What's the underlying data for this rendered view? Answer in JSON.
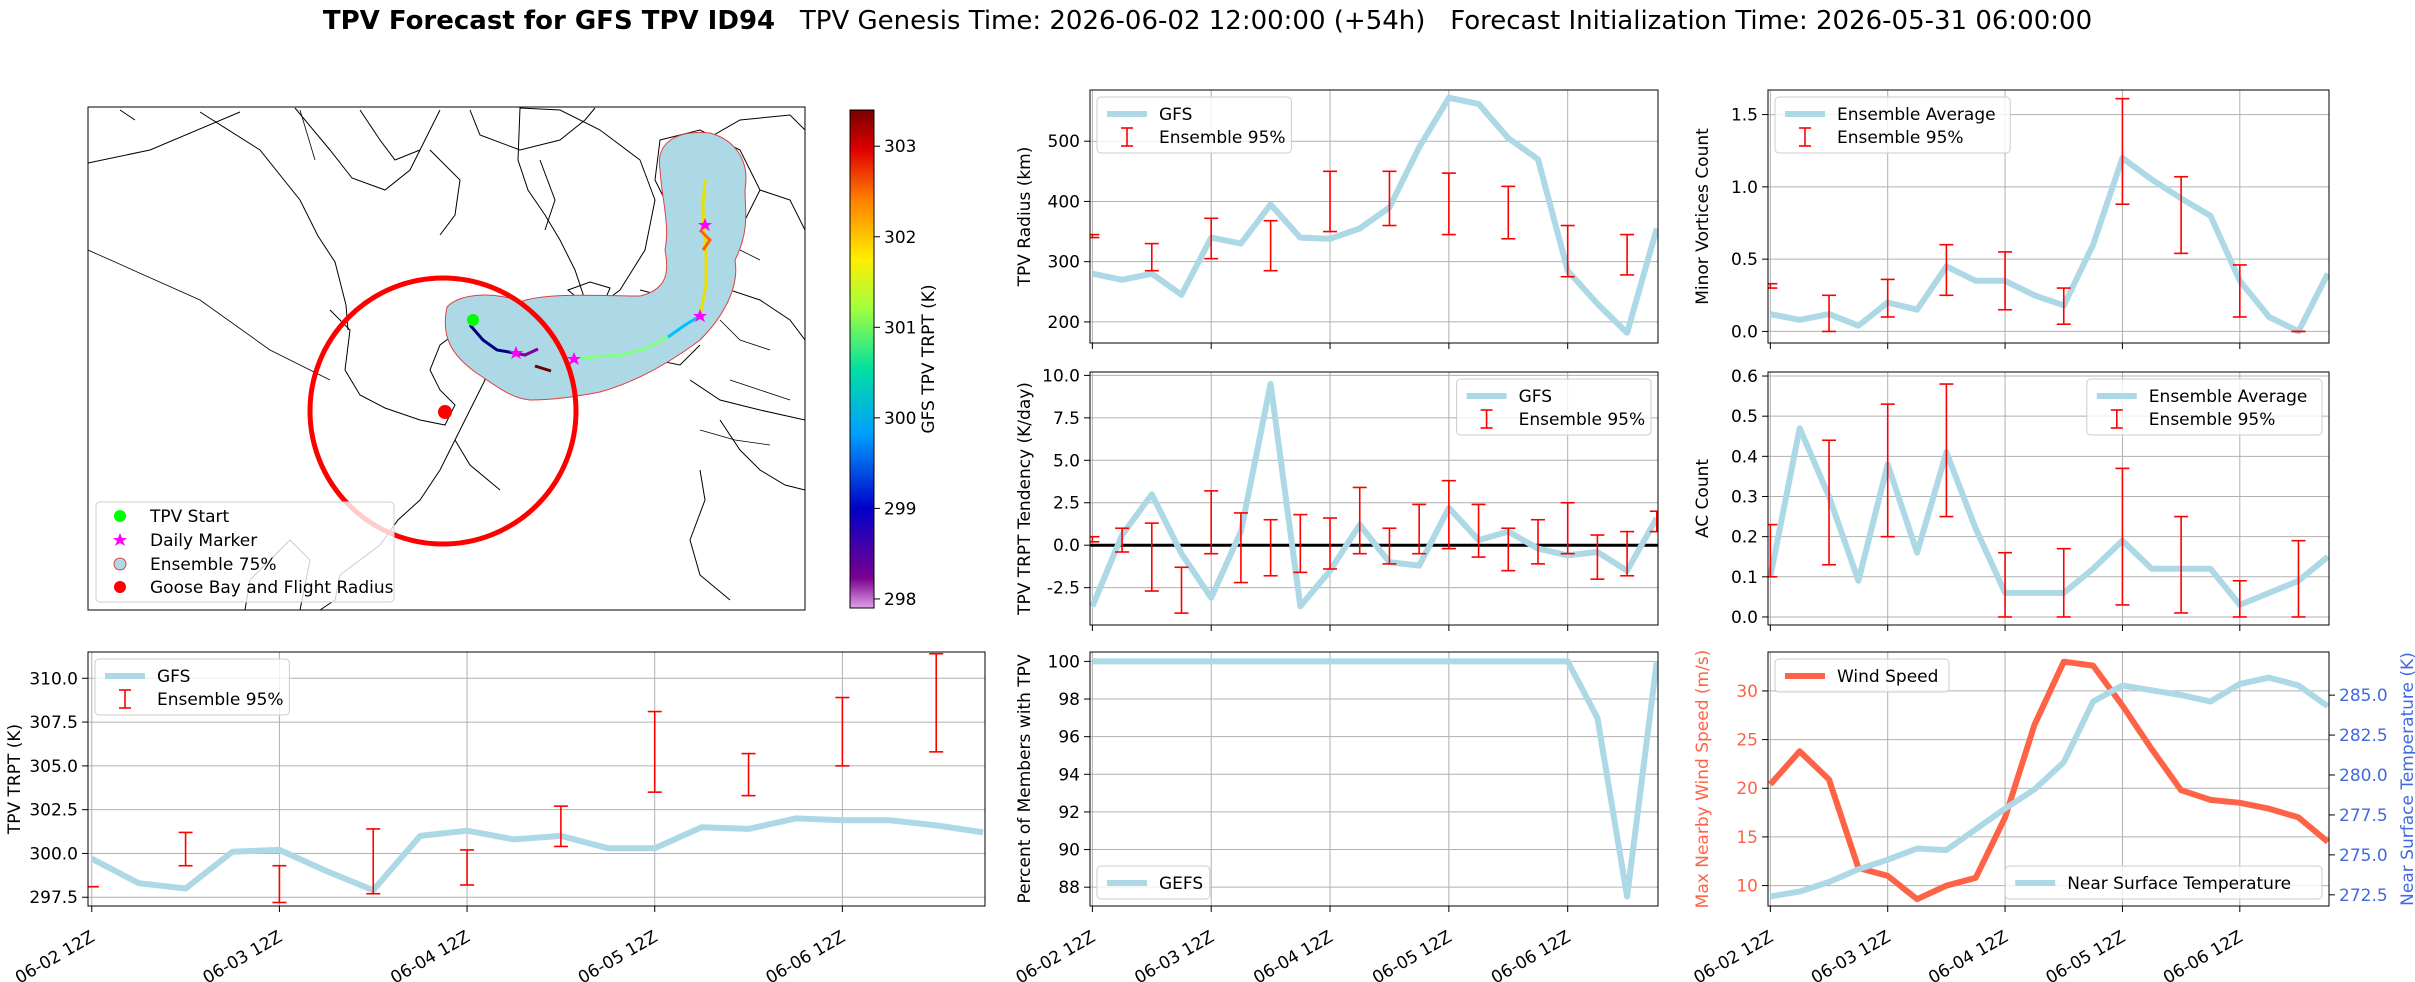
{
  "title": {
    "bold": "TPV Forecast for GFS TPV ID94",
    "genesis": "TPV Genesis Time: 2026-06-02 12:00:00 (+54h)",
    "init": "Forecast Initialization Time: 2026-05-31 06:00:00"
  },
  "colors": {
    "gfs_line": "#add8e6",
    "ensemble_err": "#ff0000",
    "wind": "#ff6347",
    "temp_axis": "#4169e1",
    "ens75_fill": "#add8e6",
    "goose_bay": "#ff0000",
    "tpv_start": "#00ff00",
    "daily_marker": "#ff00ff"
  },
  "map": {
    "legend": [
      "TPV Start",
      "Daily Marker",
      "Ensemble 75%",
      "Goose Bay and Flight Radius"
    ],
    "colorbar_label": "GFS TPV TRPT (K)",
    "colorbar_ticks": [
      298,
      299,
      300,
      301,
      302,
      303
    ],
    "colorbar_range": [
      297.9,
      303.4
    ]
  },
  "date_ticks": [
    "06-02 12Z",
    "06-03 12Z",
    "06-04 12Z",
    "06-05 12Z",
    "06-06 12Z"
  ],
  "chart_data": [
    {
      "id": "trpt",
      "type": "line",
      "ylabel": "TPV TRPT (K)",
      "ylim": [
        297,
        311.5
      ],
      "yticks": [
        297.5,
        300.0,
        302.5,
        305.0,
        307.5,
        310.0
      ],
      "x": [
        0,
        0.25,
        0.5,
        0.75,
        1,
        1.25,
        1.5,
        1.75,
        2,
        2.25,
        2.5,
        2.75,
        3,
        3.25,
        3.5,
        3.75,
        4,
        4.25,
        4.5,
        4.75
      ],
      "series": [
        {
          "name": "GFS",
          "values": [
            299.7,
            298.3,
            298.0,
            300.1,
            300.2,
            299.0,
            297.9,
            301.0,
            301.3,
            300.8,
            301.0,
            300.3,
            300.3,
            301.5,
            301.4,
            302.0,
            301.9,
            301.9,
            301.6,
            301.2
          ]
        }
      ],
      "errorbars": {
        "name": "Ensemble 95%",
        "x": [
          0,
          0.5,
          1,
          1.5,
          2,
          2.5,
          3,
          3.5,
          4,
          4.5
        ],
        "low": [
          298.1,
          299.3,
          297.2,
          297.7,
          298.2,
          300.4,
          303.5,
          303.3,
          305.0,
          305.8
        ],
        "high": [
          298.1,
          301.2,
          299.3,
          301.4,
          300.2,
          302.7,
          308.1,
          305.7,
          308.9,
          311.4
        ]
      },
      "legend": [
        "GFS",
        "Ensemble 95%"
      ]
    },
    {
      "id": "radius",
      "type": "line",
      "ylabel": "TPV Radius (km)",
      "ylim": [
        165,
        585
      ],
      "yticks": [
        200,
        300,
        400,
        500
      ],
      "x": [
        0,
        0.25,
        0.5,
        0.75,
        1,
        1.25,
        1.5,
        1.75,
        2,
        2.25,
        2.5,
        2.75,
        3,
        3.25,
        3.5,
        3.75,
        4,
        4.25,
        4.5,
        4.75
      ],
      "series": [
        {
          "name": "GFS",
          "values": [
            280,
            270,
            280,
            245,
            340,
            330,
            395,
            340,
            338,
            355,
            390,
            490,
            572,
            562,
            505,
            470,
            285,
            230,
            182,
            355
          ]
        }
      ],
      "errorbars": {
        "name": "Ensemble 95%",
        "x": [
          0,
          0.5,
          1,
          1.5,
          2,
          2.5,
          3,
          3.5,
          4,
          4.5
        ],
        "low": [
          340,
          285,
          305,
          285,
          350,
          360,
          345,
          338,
          275,
          278
        ],
        "high": [
          345,
          330,
          372,
          368,
          450,
          450,
          447,
          425,
          360,
          345
        ]
      },
      "legend": [
        "GFS",
        "Ensemble 95%"
      ]
    },
    {
      "id": "tend",
      "type": "line",
      "ylabel": "TPV TRPT Tendency (K/day)",
      "ylim": [
        -4.7,
        10.2
      ],
      "yticks": [
        -2.5,
        0.0,
        2.5,
        5.0,
        7.5,
        10.0
      ],
      "x": [
        0,
        0.25,
        0.5,
        0.75,
        1,
        1.25,
        1.5,
        1.75,
        2,
        2.25,
        2.5,
        2.75,
        3,
        3.25,
        3.5,
        3.75,
        4,
        4.25,
        4.5,
        4.75
      ],
      "series": [
        {
          "name": "GFS",
          "values": [
            -3.6,
            0.6,
            3.0,
            -0.5,
            -3.1,
            0.8,
            9.5,
            -3.6,
            -1.5,
            1.2,
            -1.0,
            -1.2,
            2.2,
            0.3,
            0.8,
            -0.2,
            -0.6,
            -0.4,
            -1.5,
            1.6
          ]
        }
      ],
      "errorbars": {
        "name": "Ensemble 95%",
        "x": [
          0,
          0.25,
          0.5,
          0.75,
          1,
          1.25,
          1.5,
          1.75,
          2,
          2.25,
          2.5,
          2.75,
          3,
          3.25,
          3.5,
          3.75,
          4,
          4.25,
          4.5,
          4.75
        ],
        "low": [
          0.2,
          -0.4,
          -2.7,
          -4.0,
          -0.5,
          -2.2,
          -1.8,
          -1.6,
          -1.4,
          -0.5,
          -1.1,
          -0.5,
          -0.2,
          -0.7,
          -1.5,
          -1.1,
          -0.5,
          -2.0,
          -1.8,
          0.8
        ],
        "high": [
          0.5,
          1.0,
          1.3,
          -1.3,
          3.2,
          1.9,
          1.5,
          1.8,
          1.6,
          3.4,
          1.0,
          2.4,
          3.8,
          2.4,
          1.0,
          1.5,
          2.5,
          0.6,
          0.8,
          2.0
        ]
      },
      "hline": 0,
      "legend": [
        "GFS",
        "Ensemble 95%"
      ]
    },
    {
      "id": "members",
      "type": "line",
      "ylabel": "Percent of Members with TPV",
      "ylim": [
        87,
        100.5
      ],
      "yticks": [
        88,
        90,
        92,
        94,
        96,
        98,
        100
      ],
      "x": [
        0,
        4,
        4.25,
        4.5,
        4.75
      ],
      "series": [
        {
          "name": "GEFS",
          "values": [
            100,
            100,
            97,
            87.5,
            100
          ]
        }
      ],
      "legend": [
        "GEFS"
      ]
    },
    {
      "id": "minor",
      "type": "line",
      "ylabel": "Minor Vortices Count",
      "ylim": [
        -0.08,
        1.67
      ],
      "yticks": [
        0.0,
        0.5,
        1.0,
        1.5
      ],
      "x": [
        0,
        0.25,
        0.5,
        0.75,
        1,
        1.25,
        1.5,
        1.75,
        2,
        2.25,
        2.5,
        2.75,
        3,
        3.25,
        3.5,
        3.75,
        4,
        4.25,
        4.5,
        4.75
      ],
      "series": [
        {
          "name": "Ensemble Average",
          "values": [
            0.12,
            0.08,
            0.12,
            0.04,
            0.2,
            0.15,
            0.45,
            0.35,
            0.35,
            0.25,
            0.18,
            0.6,
            1.2,
            1.05,
            0.92,
            0.8,
            0.35,
            0.1,
            0.0,
            0.4
          ]
        }
      ],
      "errorbars": {
        "name": "Ensemble 95%",
        "x": [
          0,
          0.5,
          1,
          1.5,
          2,
          2.5,
          3,
          3.5,
          4,
          4.5
        ],
        "low": [
          0.3,
          0.0,
          0.1,
          0.25,
          0.15,
          0.05,
          0.88,
          0.54,
          0.1,
          0.0
        ],
        "high": [
          0.33,
          0.25,
          0.36,
          0.6,
          0.55,
          0.3,
          1.61,
          1.07,
          0.46,
          0.0
        ]
      },
      "legend": [
        "Ensemble Average",
        "Ensemble 95%"
      ]
    },
    {
      "id": "ac",
      "type": "line",
      "ylabel": "AC Count",
      "ylim": [
        -0.02,
        0.61
      ],
      "yticks": [
        0.0,
        0.1,
        0.2,
        0.3,
        0.4,
        0.5,
        0.6
      ],
      "x": [
        0,
        0.25,
        0.5,
        0.75,
        1,
        1.25,
        1.5,
        1.75,
        2,
        2.25,
        2.5,
        2.75,
        3,
        3.25,
        3.5,
        3.75,
        4,
        4.25,
        4.5,
        4.75
      ],
      "series": [
        {
          "name": "Ensemble Average",
          "values": [
            0.1,
            0.47,
            0.3,
            0.09,
            0.38,
            0.16,
            0.41,
            0.22,
            0.06,
            0.06,
            0.06,
            0.12,
            0.19,
            0.12,
            0.12,
            0.12,
            0.03,
            0.06,
            0.09,
            0.15
          ]
        }
      ],
      "errorbars": {
        "name": "Ensemble 95%",
        "x": [
          0,
          0.5,
          1,
          1.5,
          2,
          2.5,
          3,
          3.5,
          4,
          4.5
        ],
        "low": [
          0.1,
          0.13,
          0.2,
          0.25,
          0.0,
          0.0,
          0.03,
          0.01,
          0.0,
          0.0
        ],
        "high": [
          0.23,
          0.44,
          0.53,
          0.58,
          0.16,
          0.17,
          0.37,
          0.25,
          0.09,
          0.19
        ]
      },
      "legend": [
        "Ensemble Average",
        "Ensemble 95%"
      ]
    },
    {
      "id": "wind",
      "type": "line",
      "ylabel": "Max Nearby Wind Speed (m/s)",
      "ylabel2": "Near Surface Temperature (K)",
      "ylim": [
        7.9,
        34
      ],
      "yticks": [
        10,
        15,
        20,
        25,
        30
      ],
      "ylim2": [
        271.8,
        287.7
      ],
      "yticks2": [
        272.5,
        275.0,
        277.5,
        280.0,
        282.5,
        285.0
      ],
      "x": [
        0,
        0.25,
        0.5,
        0.75,
        1,
        1.25,
        1.5,
        1.75,
        2,
        2.25,
        2.5,
        2.75,
        3,
        3.25,
        3.5,
        3.75,
        4,
        4.25,
        4.5,
        4.75
      ],
      "series": [
        {
          "name": "Wind Speed",
          "values": [
            20.4,
            23.8,
            20.9,
            11.8,
            11.0,
            8.6,
            10.0,
            10.8,
            17.0,
            26.5,
            33.0,
            32.6,
            28.5,
            24.0,
            19.8,
            18.8,
            18.5,
            17.9,
            17.0,
            14.5
          ]
        },
        {
          "name": "Near Surface Temperature",
          "values": [
            272.4,
            272.7,
            273.3,
            274.1,
            274.7,
            275.4,
            275.3,
            276.6,
            277.9,
            279.1,
            280.8,
            284.6,
            285.6,
            285.3,
            285.0,
            284.6,
            285.7,
            286.1,
            285.6,
            284.3
          ]
        }
      ],
      "legend": [
        "Wind Speed",
        "Near Surface Temperature"
      ]
    }
  ]
}
